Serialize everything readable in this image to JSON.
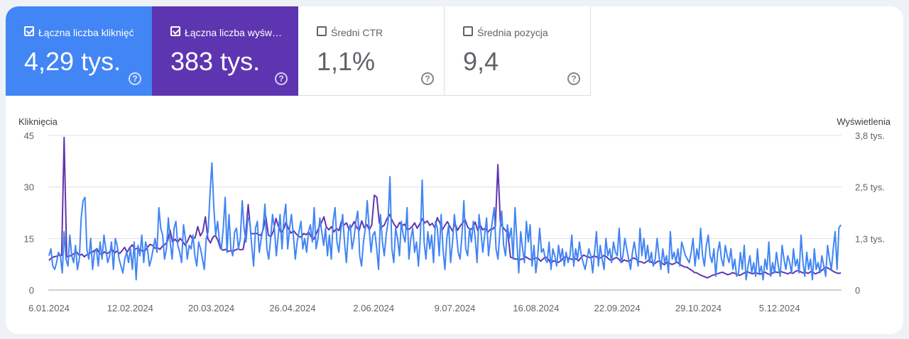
{
  "metrics": [
    {
      "label": "Łączna liczba kliknięć",
      "value": "4,29 tys.",
      "checked": true,
      "color": "#4285f4"
    },
    {
      "label": "Łączna liczba wyświetleń",
      "value": "383 tys.",
      "checked": true,
      "color": "#5e35b1"
    },
    {
      "label": "Średni CTR",
      "value": "1,1%",
      "checked": false
    },
    {
      "label": "Średnia pozycja",
      "value": "9,4",
      "checked": false
    }
  ],
  "chart_data": {
    "type": "line",
    "left_axis_title": "Kliknięcia",
    "right_axis_title": "Wyświetlenia",
    "left_ticks": [
      "0",
      "15",
      "30",
      "45"
    ],
    "right_ticks": [
      "0",
      "1,3 tys.",
      "2,5 tys.",
      "3,8 tys."
    ],
    "x_ticks": [
      "6.01.2024",
      "12.02.2024",
      "20.03.2024",
      "26.04.2024",
      "2.06.2024",
      "9.07.2024",
      "16.08.2024",
      "22.09.2024",
      "29.10.2024",
      "5.12.2024"
    ],
    "x_range": [
      "2024-01-06",
      "2025-01-05"
    ],
    "ylim_left": [
      0,
      45
    ],
    "ylim_right": [
      0,
      3800
    ],
    "grid": true,
    "series": [
      {
        "name": "Łączna liczba kliknięć",
        "axis": "left",
        "color": "#4285f4",
        "values": [
          10,
          12,
          7,
          6,
          8,
          11,
          10,
          5,
          17,
          9,
          7,
          16,
          10,
          8,
          13,
          6,
          9,
          21,
          26,
          27,
          12,
          9,
          15,
          6,
          11,
          12,
          7,
          14,
          9,
          16,
          12,
          8,
          10,
          14,
          6,
          15,
          13,
          9,
          7,
          5,
          9,
          11,
          8,
          12,
          6,
          14,
          3,
          13,
          10,
          16,
          8,
          14,
          12,
          7,
          9,
          12,
          15,
          11,
          24,
          18,
          16,
          9,
          12,
          21,
          14,
          9,
          18,
          20,
          13,
          11,
          8,
          19,
          15,
          9,
          13,
          12,
          16,
          10,
          7,
          14,
          12,
          9,
          6,
          15,
          17,
          28,
          37,
          24,
          16,
          20,
          14,
          12,
          18,
          27,
          11,
          22,
          12,
          10,
          17,
          18,
          12,
          15,
          26,
          18,
          14,
          21,
          20,
          13,
          7,
          18,
          20,
          11,
          15,
          18,
          25,
          12,
          9,
          15,
          22,
          18,
          10,
          16,
          22,
          12,
          21,
          25,
          12,
          18,
          22,
          16,
          9,
          14,
          17,
          20,
          12,
          15,
          11,
          17,
          19,
          14,
          24,
          12,
          15,
          21,
          17,
          13,
          18,
          10,
          16,
          9,
          20,
          24,
          14,
          11,
          17,
          22,
          14,
          8,
          17,
          19,
          12,
          15,
          20,
          23,
          10,
          7,
          14,
          18,
          26,
          18,
          11,
          16,
          17,
          12,
          6,
          22,
          14,
          10,
          16,
          20,
          33,
          12,
          8,
          18,
          15,
          10,
          20,
          16,
          14,
          24,
          9,
          15,
          18,
          11,
          14,
          7,
          15,
          32,
          14,
          9,
          17,
          12,
          16,
          8,
          20,
          18,
          10,
          22,
          12,
          6,
          15,
          19,
          8,
          14,
          22,
          17,
          11,
          9,
          16,
          26,
          12,
          10,
          18,
          14,
          20,
          15,
          8,
          22,
          17,
          11,
          16,
          21,
          10,
          15,
          20,
          24,
          12,
          9,
          17,
          23,
          13,
          10,
          19,
          15,
          18,
          9,
          24,
          14,
          5,
          17,
          12,
          8,
          20,
          14,
          19,
          7,
          13,
          5,
          10,
          18,
          11,
          12,
          9,
          8,
          14,
          6,
          12,
          10,
          7,
          13,
          9,
          12,
          7,
          11,
          8,
          10,
          16,
          7,
          12,
          9,
          14,
          10,
          8,
          6,
          9,
          12,
          10,
          5,
          11,
          17,
          7,
          13,
          9,
          6,
          15,
          10,
          12,
          8,
          14,
          11,
          10,
          18,
          8,
          10,
          15,
          12,
          9,
          6,
          11,
          14,
          10,
          7,
          18,
          10,
          15,
          9,
          13,
          8,
          11,
          7,
          9,
          15,
          10,
          6,
          12,
          8,
          10,
          5,
          17,
          9,
          11,
          8,
          12,
          7,
          14,
          12,
          10,
          9,
          8,
          11,
          15,
          7,
          12,
          9,
          18,
          10,
          7,
          13,
          16,
          10,
          8,
          12,
          4,
          11,
          14,
          9,
          7,
          13,
          10,
          8,
          12,
          6,
          9,
          4,
          5,
          11,
          6,
          13,
          3,
          7,
          10,
          5,
          8,
          4,
          12,
          5,
          7,
          3,
          9,
          6,
          14,
          4,
          8,
          5,
          11,
          7,
          4,
          13,
          9,
          6,
          10,
          8,
          5,
          12,
          7,
          9,
          5,
          16,
          8,
          4,
          11,
          6,
          9,
          3,
          12,
          6,
          8,
          5,
          10,
          7,
          4,
          13,
          9,
          6,
          12,
          17,
          6,
          18,
          19
        ]
      },
      {
        "name": "Łączna liczba wyświetleń",
        "axis": "right",
        "color": "#5e35b1",
        "values": [
          730,
          790,
          820,
          830,
          860,
          850,
          3750,
          820,
          830,
          860,
          900,
          930,
          850,
          880,
          820,
          870,
          900,
          930,
          970,
          1020,
          900,
          880,
          940,
          890,
          940,
          1000,
          910,
          960,
          900,
          970,
          1050,
          930,
          1040,
          1110,
          1000,
          1030,
          1000,
          960,
          960,
          1040,
          1120,
          1100,
          1030,
          1040,
          1000,
          1080,
          1120,
          1200,
          1480,
          1180,
          1250,
          1170,
          1270,
          1200,
          1100,
          1210,
          1350,
          1250,
          1300,
          1560,
          1330,
          1440,
          1800,
          1260,
          1160,
          1300,
          1340,
          1220,
          1020,
          980,
          1000,
          950,
          970,
          950,
          990,
          1010,
          990,
          1000,
          1370,
          2100,
          1400,
          1380,
          1400,
          1370,
          1340,
          1500,
          1800,
          1350,
          1310,
          1450,
          1760,
          1560,
          1410,
          1490,
          1670,
          1500,
          1400,
          1460,
          1380,
          1320,
          1300,
          1390,
          1360,
          1430,
          1300,
          1250,
          1390,
          1540,
          1650,
          1800,
          1550,
          1480,
          1560,
          1430,
          1520,
          1460,
          1700,
          1600,
          1650,
          1480,
          1560,
          1680,
          1540,
          1470,
          1700,
          1530,
          1610,
          1480,
          1600,
          2330,
          2280,
          1650,
          1550,
          1600,
          1750,
          1860,
          1720,
          1600,
          1530,
          1660,
          1580,
          1620,
          1490,
          1500,
          1560,
          1650,
          1520,
          1620,
          1750,
          1650,
          1700,
          1590,
          1640,
          1530,
          1780,
          1650,
          1480,
          1590,
          1680,
          1560,
          1450,
          1640,
          1470,
          1570,
          1650,
          1730,
          1550,
          1480,
          1530,
          1670,
          1460,
          1600,
          1480,
          1520,
          1420,
          1490,
          1500,
          1570,
          3080,
          1660,
          1540,
          1470,
          1380,
          810,
          790,
          760,
          760,
          750,
          770,
          820,
          780,
          750,
          760,
          790,
          780,
          710,
          770,
          810,
          760,
          650,
          720,
          700,
          680,
          720,
          790,
          830,
          780,
          760,
          750,
          770,
          720,
          800,
          860,
          830,
          810,
          790,
          840,
          820,
          780,
          800,
          850,
          820,
          760,
          720,
          770,
          800,
          760,
          680,
          740,
          720,
          700,
          760,
          790,
          750,
          700,
          690,
          660,
          700,
          740,
          680,
          640,
          690,
          720,
          670,
          620,
          690,
          660,
          630,
          650,
          690,
          640,
          600,
          570,
          560,
          520,
          480,
          430,
          420,
          380,
          350,
          330,
          300,
          330,
          360,
          380,
          400,
          420,
          440,
          410,
          380,
          390,
          430,
          410,
          380,
          360,
          400,
          430,
          450,
          420,
          400,
          430,
          410,
          390,
          420,
          440,
          400,
          380,
          420,
          450,
          430,
          460,
          440,
          420,
          400,
          430,
          410,
          460,
          480,
          450,
          420,
          440,
          410,
          450,
          430,
          400,
          430,
          460,
          510,
          560,
          540,
          500,
          460,
          430,
          410,
          420
        ]
      }
    ]
  }
}
